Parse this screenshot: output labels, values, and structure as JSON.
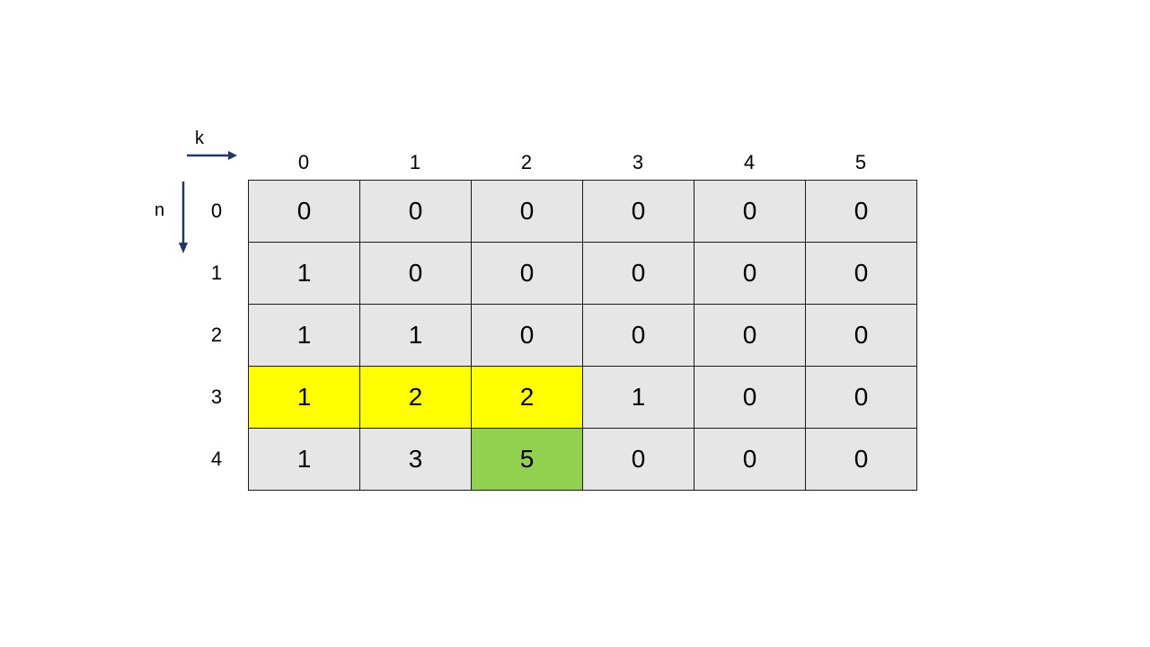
{
  "axes": {
    "k_label": "k",
    "n_label": "n",
    "arrow_color": "#1f3864"
  },
  "columns": [
    "0",
    "1",
    "2",
    "3",
    "4",
    "5"
  ],
  "rows": [
    {
      "label": "0",
      "cells": [
        "0",
        "0",
        "0",
        "0",
        "0",
        "0"
      ]
    },
    {
      "label": "1",
      "cells": [
        "1",
        "0",
        "0",
        "0",
        "0",
        "0"
      ]
    },
    {
      "label": "2",
      "cells": [
        "1",
        "1",
        "0",
        "0",
        "0",
        "0"
      ]
    },
    {
      "label": "3",
      "cells": [
        "1",
        "2",
        "2",
        "1",
        "0",
        "0"
      ]
    },
    {
      "label": "4",
      "cells": [
        "1",
        "3",
        "5",
        "0",
        "0",
        "0"
      ]
    }
  ],
  "highlights": {
    "yellow": [
      [
        3,
        0
      ],
      [
        3,
        1
      ],
      [
        3,
        2
      ]
    ],
    "green": [
      [
        4,
        2
      ]
    ],
    "yellow_color": "#ffff00",
    "green_color": "#92d050",
    "default_color": "#e6e6e6"
  }
}
